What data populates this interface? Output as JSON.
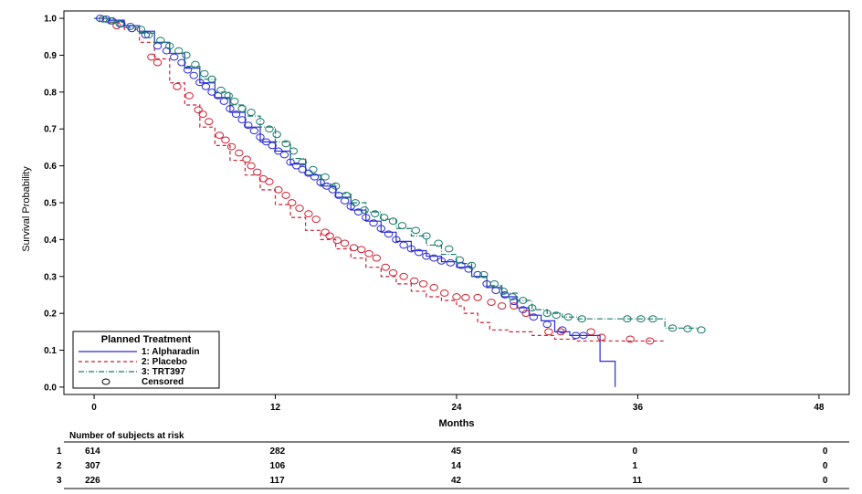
{
  "chart_data": {
    "type": "line",
    "xlabel": "Months",
    "ylabel": "Survival Probability",
    "xlim": [
      -2,
      50
    ],
    "ylim": [
      -0.02,
      1.02
    ],
    "x_ticks": [
      "0",
      "12",
      "24",
      "36",
      "48"
    ],
    "y_ticks": [
      "0.0",
      "0.1",
      "0.2",
      "0.3",
      "0.4",
      "0.5",
      "0.6",
      "0.7",
      "0.8",
      "0.9",
      "1.0"
    ],
    "legend": {
      "title": "Planned Treatment",
      "placement": "bottom-left",
      "entries": [
        "1: Alpharadin",
        "2: Placebo",
        "3: TRT397",
        "Censored"
      ]
    },
    "series": [
      {
        "name": "1: Alpharadin",
        "color": "#2b2bd6",
        "dash": "solid",
        "points": [
          [
            0,
            1.0
          ],
          [
            1,
            0.995
          ],
          [
            2,
            0.98
          ],
          [
            3,
            0.965
          ],
          [
            4,
            0.935
          ],
          [
            5,
            0.905
          ],
          [
            6,
            0.865
          ],
          [
            7,
            0.825
          ],
          [
            8,
            0.785
          ],
          [
            9,
            0.745
          ],
          [
            10,
            0.705
          ],
          [
            11,
            0.665
          ],
          [
            12,
            0.64
          ],
          [
            13,
            0.605
          ],
          [
            14,
            0.575
          ],
          [
            15,
            0.545
          ],
          [
            16,
            0.515
          ],
          [
            17,
            0.48
          ],
          [
            18,
            0.45
          ],
          [
            19,
            0.42
          ],
          [
            20,
            0.395
          ],
          [
            21,
            0.37
          ],
          [
            22,
            0.355
          ],
          [
            23,
            0.34
          ],
          [
            24,
            0.325
          ],
          [
            25,
            0.3
          ],
          [
            26,
            0.27
          ],
          [
            27,
            0.245
          ],
          [
            28,
            0.215
          ],
          [
            28.8,
            0.195
          ],
          [
            29.6,
            0.18
          ],
          [
            30.5,
            0.15
          ],
          [
            31.5,
            0.14
          ],
          [
            32.8,
            0.14
          ],
          [
            33.5,
            0.07
          ],
          [
            34.5,
            0.0
          ]
        ],
        "censored": [
          [
            0.4,
            1.0
          ],
          [
            0.8,
            0.998
          ],
          [
            1.2,
            0.993
          ],
          [
            1.8,
            0.985
          ],
          [
            2.5,
            0.972
          ],
          [
            3.4,
            0.955
          ],
          [
            4.2,
            0.925
          ],
          [
            4.8,
            0.912
          ],
          [
            5.3,
            0.895
          ],
          [
            5.8,
            0.88
          ],
          [
            6.2,
            0.86
          ],
          [
            6.6,
            0.845
          ],
          [
            7,
            0.826
          ],
          [
            7.4,
            0.815
          ],
          [
            7.8,
            0.8
          ],
          [
            8.2,
            0.79
          ],
          [
            8.6,
            0.775
          ],
          [
            9,
            0.755
          ],
          [
            9.4,
            0.74
          ],
          [
            9.8,
            0.725
          ],
          [
            10.2,
            0.71
          ],
          [
            10.6,
            0.695
          ],
          [
            11,
            0.678
          ],
          [
            11.4,
            0.665
          ],
          [
            11.8,
            0.655
          ],
          [
            12.2,
            0.64
          ],
          [
            12.6,
            0.63
          ],
          [
            13,
            0.61
          ],
          [
            13.4,
            0.6
          ],
          [
            13.8,
            0.59
          ],
          [
            14.2,
            0.58
          ],
          [
            14.6,
            0.57
          ],
          [
            15,
            0.555
          ],
          [
            15.4,
            0.545
          ],
          [
            15.8,
            0.535
          ],
          [
            16.2,
            0.52
          ],
          [
            16.6,
            0.505
          ],
          [
            17,
            0.49
          ],
          [
            17.5,
            0.475
          ],
          [
            18,
            0.46
          ],
          [
            18.5,
            0.445
          ],
          [
            19,
            0.43
          ],
          [
            19.5,
            0.415
          ],
          [
            20,
            0.4
          ],
          [
            20.5,
            0.385
          ],
          [
            21,
            0.375
          ],
          [
            21.5,
            0.365
          ],
          [
            22,
            0.355
          ],
          [
            22.5,
            0.35
          ],
          [
            23,
            0.342
          ],
          [
            23.6,
            0.337
          ],
          [
            24.3,
            0.33
          ],
          [
            24.8,
            0.32
          ],
          [
            25.4,
            0.305
          ],
          [
            26,
            0.28
          ],
          [
            26.6,
            0.262
          ],
          [
            27.2,
            0.25
          ],
          [
            27.8,
            0.232
          ],
          [
            28.4,
            0.21
          ],
          [
            29.1,
            0.19
          ],
          [
            30,
            0.17
          ],
          [
            31,
            0.155
          ],
          [
            31.9,
            0.14
          ],
          [
            32.4,
            0.14
          ]
        ]
      },
      {
        "name": "2: Placebo",
        "color": "#cc2233",
        "dash": "dashed",
        "points": [
          [
            0,
            1.0
          ],
          [
            1,
            0.99
          ],
          [
            2,
            0.97
          ],
          [
            3,
            0.935
          ],
          [
            4,
            0.89
          ],
          [
            5,
            0.825
          ],
          [
            6,
            0.765
          ],
          [
            7,
            0.705
          ],
          [
            8,
            0.655
          ],
          [
            9,
            0.615
          ],
          [
            10,
            0.575
          ],
          [
            11,
            0.535
          ],
          [
            12,
            0.495
          ],
          [
            13,
            0.46
          ],
          [
            14,
            0.425
          ],
          [
            15,
            0.4
          ],
          [
            16,
            0.375
          ],
          [
            17,
            0.35
          ],
          [
            18,
            0.325
          ],
          [
            19,
            0.3
          ],
          [
            20,
            0.28
          ],
          [
            21,
            0.26
          ],
          [
            22,
            0.245
          ],
          [
            23,
            0.235
          ],
          [
            24,
            0.22
          ],
          [
            24.5,
            0.2
          ],
          [
            25.4,
            0.175
          ],
          [
            26.2,
            0.155
          ],
          [
            27.5,
            0.15
          ],
          [
            29,
            0.14
          ],
          [
            30.5,
            0.13
          ],
          [
            32,
            0.125
          ],
          [
            33.5,
            0.125
          ],
          [
            35.5,
            0.125
          ],
          [
            37.8,
            0.125
          ]
        ],
        "censored": [
          [
            1.5,
            0.98
          ],
          [
            3.8,
            0.895
          ],
          [
            4.2,
            0.88
          ],
          [
            5.5,
            0.815
          ],
          [
            6.3,
            0.79
          ],
          [
            6.9,
            0.752
          ],
          [
            7.2,
            0.74
          ],
          [
            7.6,
            0.72
          ],
          [
            8.3,
            0.683
          ],
          [
            8.7,
            0.67
          ],
          [
            9.1,
            0.652
          ],
          [
            9.6,
            0.635
          ],
          [
            10.1,
            0.618
          ],
          [
            10.4,
            0.6
          ],
          [
            10.8,
            0.583
          ],
          [
            11.2,
            0.565
          ],
          [
            11.6,
            0.557
          ],
          [
            12.2,
            0.535
          ],
          [
            12.7,
            0.52
          ],
          [
            13.1,
            0.5
          ],
          [
            13.6,
            0.485
          ],
          [
            14.2,
            0.47
          ],
          [
            14.7,
            0.455
          ],
          [
            15.3,
            0.42
          ],
          [
            15.6,
            0.41
          ],
          [
            16.1,
            0.398
          ],
          [
            16.6,
            0.39
          ],
          [
            17.2,
            0.378
          ],
          [
            17.7,
            0.373
          ],
          [
            18.2,
            0.362
          ],
          [
            18.7,
            0.35
          ],
          [
            19.3,
            0.325
          ],
          [
            19.8,
            0.31
          ],
          [
            20.5,
            0.3
          ],
          [
            21.2,
            0.288
          ],
          [
            21.8,
            0.28
          ],
          [
            22.5,
            0.27
          ],
          [
            23.2,
            0.255
          ],
          [
            24,
            0.245
          ],
          [
            24.6,
            0.243
          ],
          [
            25.4,
            0.243
          ],
          [
            26.3,
            0.23
          ],
          [
            27,
            0.22
          ],
          [
            27.8,
            0.22
          ],
          [
            28.6,
            0.2
          ],
          [
            30.1,
            0.15
          ],
          [
            30.9,
            0.15
          ],
          [
            32.9,
            0.15
          ],
          [
            33.6,
            0.135
          ],
          [
            35.5,
            0.13
          ],
          [
            36.8,
            0.125
          ]
        ]
      },
      {
        "name": "3: TRT397",
        "color": "#1a7a6a",
        "dash": "dash-dot",
        "points": [
          [
            0,
            1.0
          ],
          [
            1,
            0.99
          ],
          [
            2,
            0.975
          ],
          [
            3,
            0.96
          ],
          [
            4,
            0.935
          ],
          [
            5,
            0.905
          ],
          [
            6,
            0.87
          ],
          [
            7,
            0.835
          ],
          [
            8,
            0.8
          ],
          [
            9,
            0.765
          ],
          [
            10,
            0.735
          ],
          [
            11,
            0.705
          ],
          [
            12,
            0.665
          ],
          [
            13,
            0.62
          ],
          [
            14,
            0.575
          ],
          [
            15,
            0.55
          ],
          [
            16,
            0.525
          ],
          [
            17,
            0.5
          ],
          [
            18,
            0.475
          ],
          [
            19,
            0.455
          ],
          [
            20,
            0.43
          ],
          [
            21,
            0.41
          ],
          [
            22,
            0.385
          ],
          [
            23,
            0.36
          ],
          [
            24,
            0.335
          ],
          [
            25,
            0.3
          ],
          [
            26,
            0.275
          ],
          [
            27,
            0.255
          ],
          [
            28,
            0.235
          ],
          [
            29,
            0.21
          ],
          [
            30,
            0.2
          ],
          [
            31,
            0.19
          ],
          [
            32,
            0.185
          ],
          [
            35,
            0.185
          ],
          [
            37,
            0.185
          ],
          [
            37.8,
            0.16
          ],
          [
            40,
            0.155
          ]
        ],
        "censored": [
          [
            0.6,
            0.998
          ],
          [
            1.1,
            0.993
          ],
          [
            1.7,
            0.985
          ],
          [
            2.4,
            0.978
          ],
          [
            3.1,
            0.97
          ],
          [
            3.6,
            0.955
          ],
          [
            4.4,
            0.94
          ],
          [
            5,
            0.925
          ],
          [
            5.6,
            0.912
          ],
          [
            6.1,
            0.9
          ],
          [
            6.7,
            0.875
          ],
          [
            7.3,
            0.85
          ],
          [
            7.8,
            0.835
          ],
          [
            8.4,
            0.805
          ],
          [
            8.9,
            0.79
          ],
          [
            9.3,
            0.775
          ],
          [
            9.8,
            0.755
          ],
          [
            10.4,
            0.745
          ],
          [
            11,
            0.72
          ],
          [
            11.6,
            0.7
          ],
          [
            12.1,
            0.685
          ],
          [
            12.7,
            0.66
          ],
          [
            13.2,
            0.64
          ],
          [
            13.8,
            0.61
          ],
          [
            14.5,
            0.59
          ],
          [
            15.3,
            0.57
          ],
          [
            16,
            0.545
          ],
          [
            16.7,
            0.52
          ],
          [
            17.3,
            0.5
          ],
          [
            17.9,
            0.48
          ],
          [
            18.6,
            0.47
          ],
          [
            19.2,
            0.46
          ],
          [
            19.8,
            0.45
          ],
          [
            20.4,
            0.438
          ],
          [
            21.3,
            0.425
          ],
          [
            22,
            0.41
          ],
          [
            22.8,
            0.39
          ],
          [
            23.5,
            0.375
          ],
          [
            24.2,
            0.345
          ],
          [
            25,
            0.33
          ],
          [
            25.8,
            0.305
          ],
          [
            26.5,
            0.28
          ],
          [
            27.1,
            0.26
          ],
          [
            27.7,
            0.245
          ],
          [
            28.4,
            0.235
          ],
          [
            29,
            0.215
          ],
          [
            30,
            0.2
          ],
          [
            30.6,
            0.195
          ],
          [
            31.4,
            0.19
          ],
          [
            32.3,
            0.185
          ],
          [
            35.3,
            0.185
          ],
          [
            36.2,
            0.185
          ],
          [
            37,
            0.185
          ],
          [
            38.3,
            0.16
          ],
          [
            39.3,
            0.158
          ],
          [
            40.2,
            0.155
          ]
        ]
      }
    ]
  },
  "risk_table": {
    "title": "Number of subjects at risk",
    "rows": [
      {
        "label": "1",
        "values": [
          "614",
          "282",
          "45",
          "0",
          "0"
        ]
      },
      {
        "label": "2",
        "values": [
          "307",
          "106",
          "14",
          "1",
          "0"
        ]
      },
      {
        "label": "3",
        "values": [
          "226",
          "117",
          "42",
          "11",
          "0"
        ]
      }
    ]
  }
}
